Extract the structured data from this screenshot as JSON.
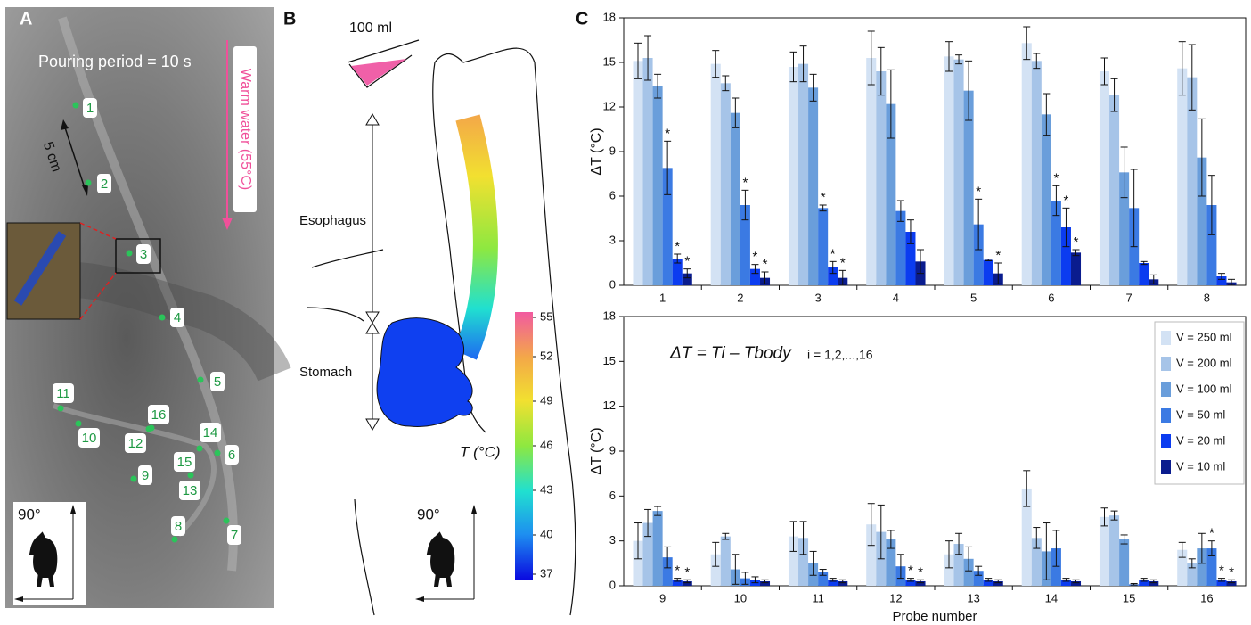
{
  "panel_a": {
    "label": "A",
    "pouring": "Pouring period = 10 s",
    "warm_water": "Warm water (55°C)",
    "scale": "5 cm",
    "probes": [
      "1",
      "2",
      "3",
      "4",
      "5",
      "6",
      "7",
      "8",
      "9",
      "10",
      "11",
      "12",
      "13",
      "14",
      "15",
      "16"
    ],
    "angle": "90°"
  },
  "panel_b": {
    "label": "B",
    "volume": "100 ml",
    "esophagus": "Esophagus",
    "stomach": "Stomach",
    "colorbar_title": "T (°C)",
    "colorbar": {
      "lim": [
        37,
        55
      ],
      "ticks": [
        37,
        40,
        43,
        46,
        49,
        52,
        55
      ]
    },
    "angle": "90°"
  },
  "panel_c": {
    "label": "C"
  },
  "chart_data": [
    {
      "type": "bar",
      "categories": [
        "1",
        "2",
        "3",
        "4",
        "5",
        "6",
        "7",
        "8"
      ],
      "ylabel": "ΔT (°C)",
      "ylim": [
        0,
        18
      ],
      "yticks": [
        0,
        3,
        6,
        9,
        12,
        15,
        18
      ],
      "series": [
        {
          "color": "#d3e2f4",
          "values": [
            15.1,
            14.9,
            14.7,
            15.3,
            15.4,
            16.3,
            14.4,
            14.6
          ],
          "errors": [
            1.2,
            0.9,
            1.0,
            1.8,
            1.0,
            1.1,
            0.9,
            1.8
          ],
          "annotations": [
            null,
            null,
            null,
            null,
            null,
            null,
            null,
            null
          ]
        },
        {
          "color": "#a6c4e8",
          "values": [
            15.3,
            13.6,
            14.9,
            14.4,
            15.2,
            15.1,
            12.8,
            14.0
          ],
          "errors": [
            1.5,
            0.5,
            1.2,
            1.6,
            0.3,
            0.5,
            1.1,
            2.2
          ],
          "annotations": [
            null,
            null,
            null,
            null,
            null,
            null,
            null,
            null
          ]
        },
        {
          "color": "#6a9edb",
          "values": [
            13.4,
            11.6,
            13.3,
            12.2,
            13.1,
            11.5,
            7.6,
            8.6
          ],
          "errors": [
            0.8,
            1.0,
            0.9,
            2.3,
            2.0,
            1.4,
            1.7,
            2.6
          ],
          "annotations": [
            null,
            null,
            null,
            null,
            null,
            null,
            null,
            null
          ]
        },
        {
          "color": "#3b7ae3",
          "values": [
            7.9,
            5.4,
            5.2,
            5.0,
            4.1,
            5.7,
            5.2,
            5.4
          ],
          "errors": [
            1.8,
            1.0,
            0.2,
            0.7,
            1.7,
            1.0,
            2.6,
            2.0
          ],
          "annotations": [
            "*",
            "*",
            "*",
            null,
            "*",
            "*",
            null,
            null
          ]
        },
        {
          "color": "#0b3cf0",
          "values": [
            1.8,
            1.1,
            1.2,
            3.6,
            1.7,
            3.9,
            1.5,
            0.6
          ],
          "errors": [
            0.3,
            0.3,
            0.4,
            0.8,
            0.05,
            1.3,
            0.1,
            0.2
          ],
          "annotations": [
            "*",
            "*",
            "*",
            null,
            null,
            "*",
            null,
            null
          ]
        },
        {
          "color": "#0a1c8e",
          "values": [
            0.8,
            0.5,
            0.5,
            1.6,
            0.8,
            2.2,
            0.4,
            0.2
          ],
          "errors": [
            0.3,
            0.4,
            0.5,
            0.8,
            0.7,
            0.2,
            0.3,
            0.2
          ],
          "annotations": [
            "*",
            "*",
            "*",
            null,
            "*",
            "*",
            null,
            null
          ]
        }
      ]
    },
    {
      "type": "bar",
      "categories": [
        "9",
        "10",
        "11",
        "12",
        "13",
        "14",
        "15",
        "16"
      ],
      "ylabel": "ΔT (°C)",
      "xlabel": "Probe number",
      "formula": "ΔT = Ti – Tbody",
      "formula_index": "i = 1,2,...,16",
      "legend": "upper right",
      "ylim": [
        0,
        18
      ],
      "yticks": [
        0,
        3,
        6,
        9,
        12,
        15,
        18
      ],
      "series": [
        {
          "name": "V = 250 ml",
          "color": "#d3e2f4",
          "values": [
            3.0,
            2.1,
            3.3,
            4.1,
            2.1,
            6.5,
            4.6,
            2.4
          ],
          "errors": [
            1.2,
            0.8,
            1.0,
            1.4,
            0.9,
            1.2,
            0.6,
            0.5
          ],
          "annotations": [
            null,
            null,
            null,
            null,
            null,
            null,
            null,
            null
          ]
        },
        {
          "name": "V = 200 ml",
          "color": "#a6c4e8",
          "values": [
            4.2,
            3.3,
            3.2,
            3.6,
            2.8,
            3.2,
            4.7,
            1.5
          ],
          "errors": [
            0.9,
            0.2,
            1.1,
            1.8,
            0.7,
            0.7,
            0.3,
            0.3
          ],
          "annotations": [
            null,
            null,
            null,
            null,
            null,
            null,
            null,
            null
          ]
        },
        {
          "name": "V = 100 ml",
          "color": "#6a9edb",
          "values": [
            5.0,
            1.1,
            1.5,
            3.1,
            1.8,
            2.3,
            3.1,
            2.5
          ],
          "errors": [
            0.3,
            1.0,
            0.8,
            0.6,
            0.8,
            1.9,
            0.3,
            1.0
          ],
          "annotations": [
            null,
            null,
            null,
            null,
            null,
            null,
            null,
            null
          ]
        },
        {
          "name": "V = 50 ml",
          "color": "#3b7ae3",
          "values": [
            1.9,
            0.5,
            0.9,
            1.3,
            1.0,
            2.5,
            0.1,
            2.5
          ],
          "errors": [
            0.7,
            0.4,
            0.2,
            0.8,
            0.3,
            1.2,
            0.05,
            0.5
          ],
          "annotations": [
            null,
            null,
            null,
            null,
            null,
            null,
            null,
            "*"
          ]
        },
        {
          "name": "V = 20 ml",
          "color": "#0b3cf0",
          "values": [
            0.4,
            0.4,
            0.4,
            0.4,
            0.4,
            0.4,
            0.4,
            0.4
          ],
          "errors": [
            0.1,
            0.2,
            0.1,
            0.1,
            0.1,
            0.1,
            0.1,
            0.1
          ],
          "annotations": [
            "*",
            null,
            null,
            "*",
            null,
            null,
            null,
            "*"
          ]
        },
        {
          "name": "V = 10 ml",
          "color": "#0a1c8e",
          "values": [
            0.3,
            0.3,
            0.3,
            0.3,
            0.3,
            0.3,
            0.3,
            0.3
          ],
          "errors": [
            0.1,
            0.1,
            0.1,
            0.1,
            0.1,
            0.1,
            0.1,
            0.1
          ],
          "annotations": [
            "*",
            null,
            null,
            "*",
            null,
            null,
            null,
            "*"
          ]
        }
      ]
    }
  ]
}
